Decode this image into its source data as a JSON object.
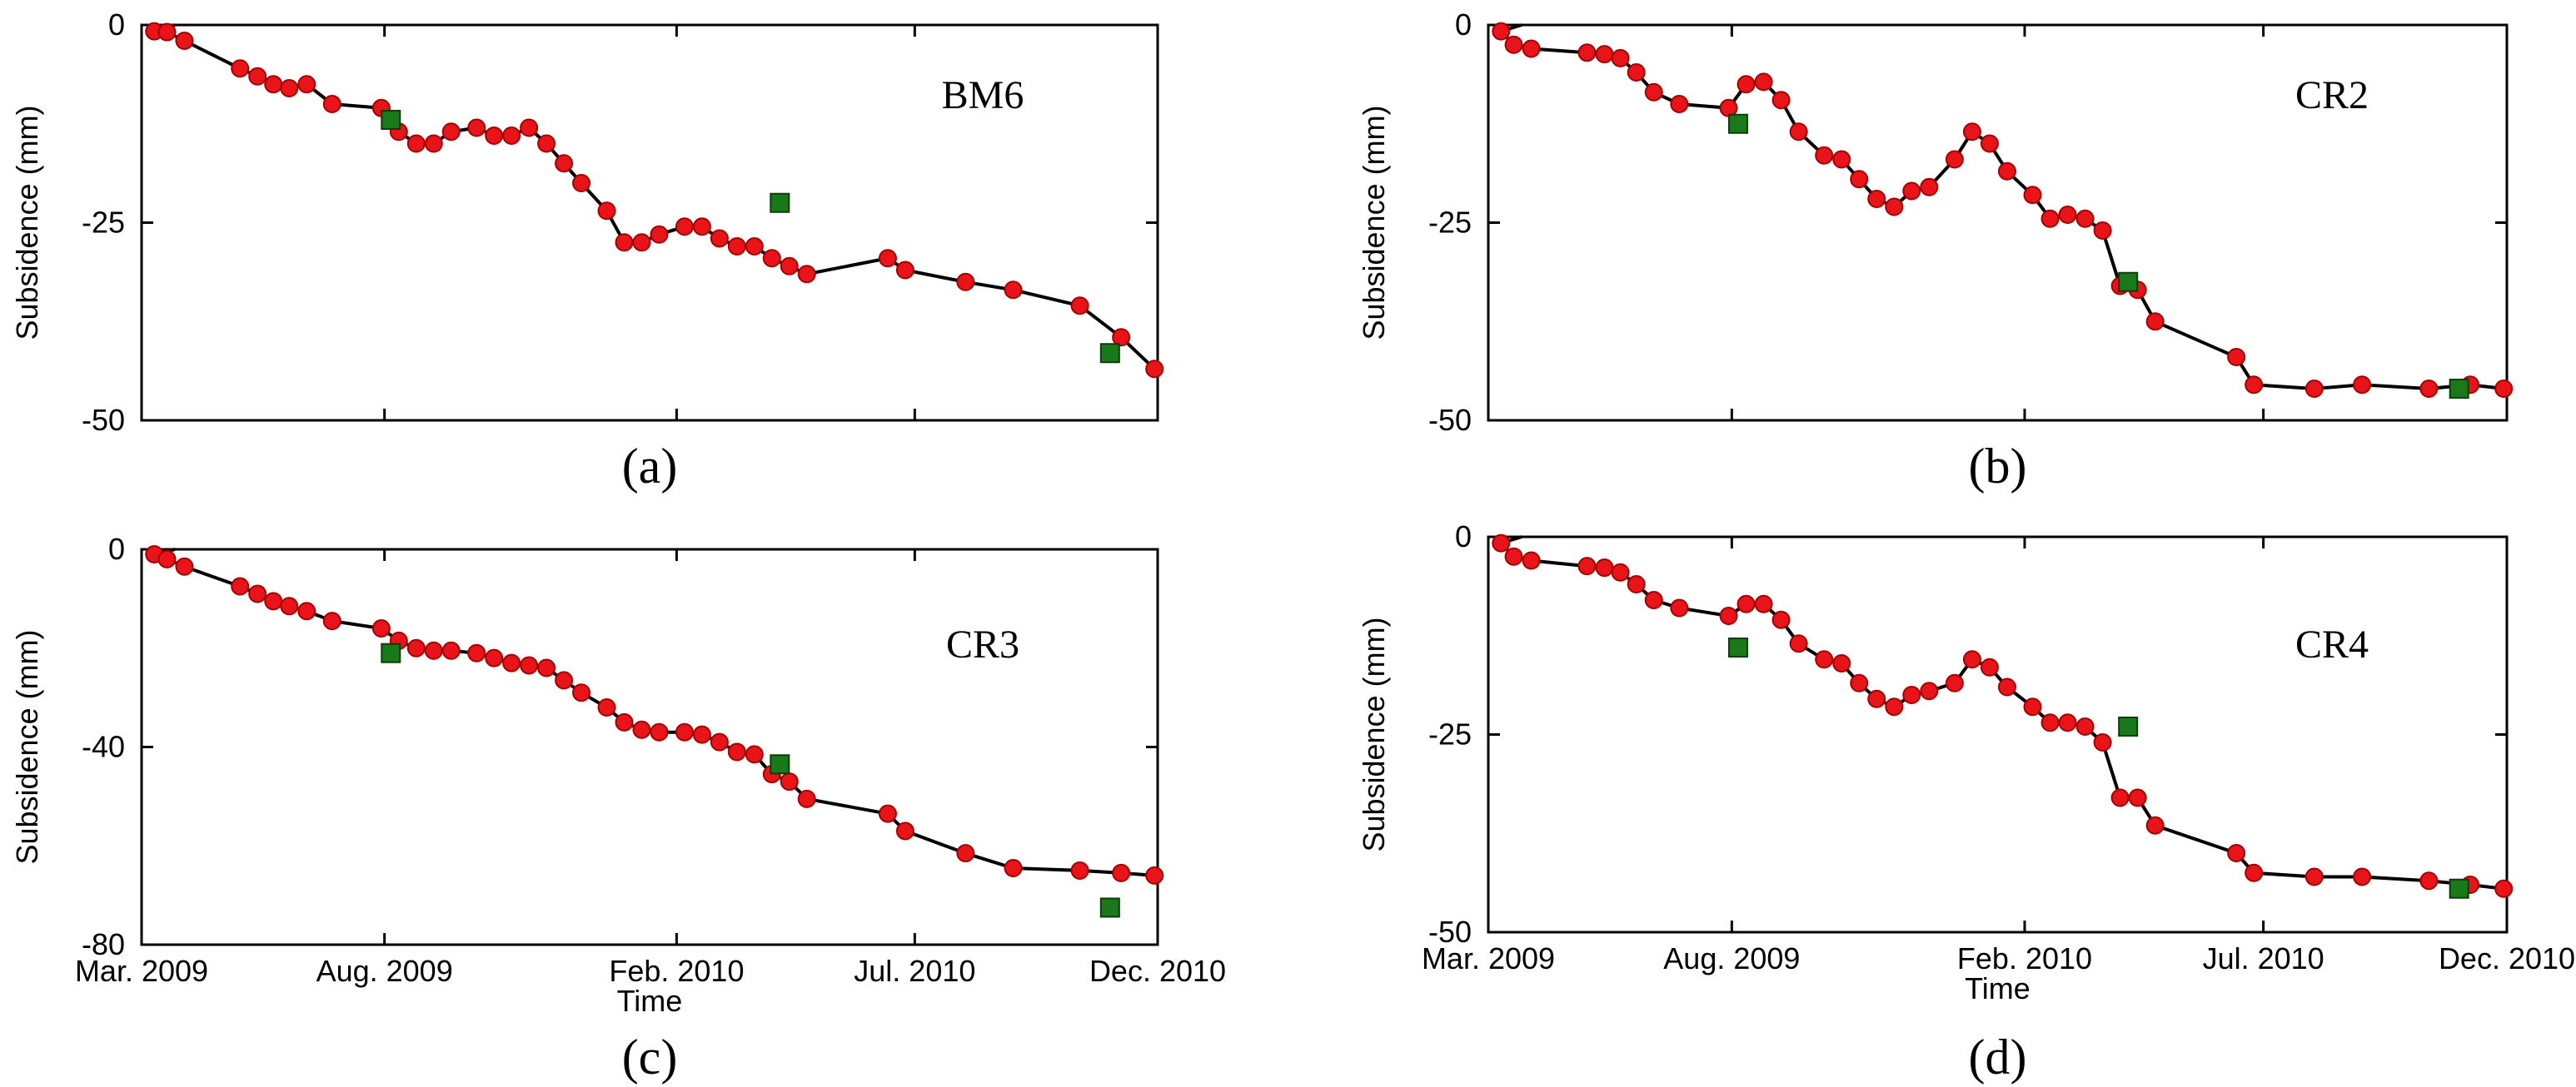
{
  "colors": {
    "insar_points": "#e8141a",
    "leveling_points": "#1a7a1a",
    "line": "#000000",
    "background": "#ffffff"
  },
  "x_tick_labels": [
    "Mar. 2009",
    "Aug. 2009",
    "Feb. 2010",
    "Jul. 2010",
    "Dec. 2010"
  ],
  "x_tick_dates": [
    "2009-03-01",
    "2009-08-01",
    "2010-02-01",
    "2010-07-01",
    "2010-12-01"
  ],
  "chart_data": [
    {
      "type": "line",
      "panel": "(a)",
      "station": "BM6",
      "xlabel": "",
      "ylabel": "Subsidence (mm)",
      "ylim": [
        -50,
        0
      ],
      "yticks": [
        "0",
        "-25",
        "-50"
      ],
      "xlim": [
        "2009-03-01",
        "2010-12-01"
      ],
      "series": [
        {
          "marker": "circle",
          "color": "#e8141a",
          "x": [
            "2009-03-09",
            "2009-03-17",
            "2009-03-28",
            "2009-05-02",
            "2009-05-13",
            "2009-05-23",
            "2009-06-02",
            "2009-06-13",
            "2009-06-29",
            "2009-07-30",
            "2009-08-10",
            "2009-08-21",
            "2009-09-01",
            "2009-09-12",
            "2009-09-28",
            "2009-10-09",
            "2009-10-20",
            "2009-10-31",
            "2009-11-11",
            "2009-11-22",
            "2009-12-03",
            "2009-12-19",
            "2009-12-30",
            "2010-01-10",
            "2010-01-21",
            "2010-02-06",
            "2010-02-17",
            "2010-02-28",
            "2010-03-11",
            "2010-03-22",
            "2010-04-02",
            "2010-04-13",
            "2010-04-24",
            "2010-06-14",
            "2010-06-25",
            "2010-08-02",
            "2010-09-01",
            "2010-10-13",
            "2010-11-08",
            "2010-11-29"
          ],
          "y": [
            -0.8,
            -0.9,
            -2,
            -5.5,
            -6.5,
            -7.5,
            -8,
            -7.5,
            -10,
            -10.5,
            -13.5,
            -15,
            -15,
            -13.5,
            -13,
            -14,
            -14,
            -13,
            -15,
            -17.5,
            -20,
            -23.5,
            -27.5,
            -27.5,
            -26.5,
            -25.5,
            -25.5,
            -27,
            -28,
            -28,
            -29.5,
            -30.5,
            -31.5,
            -29.5,
            -31,
            -32.5,
            -33.5,
            -35.5,
            -39.5,
            -43.5
          ]
        },
        {
          "marker": "square",
          "color": "#1a7a1a",
          "x": [
            "2009-08-05",
            "2010-04-07",
            "2010-11-01"
          ],
          "y": [
            -12,
            -22.5,
            -41.5
          ]
        }
      ]
    },
    {
      "type": "line",
      "panel": "(b)",
      "station": "CR2",
      "xlabel": "",
      "ylabel": "Subsidence (mm)",
      "ylim": [
        -50,
        0
      ],
      "yticks": [
        "0",
        "-25",
        "-50"
      ],
      "xlim": [
        "2009-03-01",
        "2010-12-01"
      ],
      "series": [
        {
          "marker": "circle",
          "color": "#e8141a",
          "x": [
            "2009-03-09",
            "2009-03-17",
            "2009-03-28",
            "2009-05-02",
            "2009-05-13",
            "2009-05-23",
            "2009-06-02",
            "2009-06-13",
            "2009-06-29",
            "2009-07-30",
            "2009-08-10",
            "2009-08-21",
            "2009-09-01",
            "2009-09-12",
            "2009-09-28",
            "2009-10-09",
            "2009-10-20",
            "2009-10-31",
            "2009-11-11",
            "2009-11-22",
            "2009-12-03",
            "2009-12-19",
            "2009-12-30",
            "2010-01-10",
            "2010-01-21",
            "2010-02-06",
            "2010-02-17",
            "2010-02-28",
            "2010-03-11",
            "2010-03-22",
            "2010-04-02",
            "2010-04-13",
            "2010-04-24",
            "2010-06-14",
            "2010-06-25",
            "2010-08-02",
            "2010-09-01",
            "2010-10-13",
            "2010-11-08",
            "2010-11-29"
          ],
          "y": [
            -0.8,
            -2.5,
            -3,
            -3.5,
            -3.7,
            -4.2,
            -6,
            -8.5,
            -10,
            -10.5,
            -7.5,
            -7.2,
            -9.5,
            -13.5,
            -16.5,
            -17,
            -19.5,
            -22,
            -23,
            -21,
            -20.5,
            -17,
            -13.5,
            -15,
            -18.5,
            -21.5,
            -24.5,
            -24,
            -24.5,
            -26,
            -33,
            -33.5,
            -37.5,
            -42,
            -45.5,
            -46,
            -45.5,
            -46,
            -45.5,
            -46
          ]
        },
        {
          "marker": "square",
          "color": "#1a7a1a",
          "x": [
            "2009-08-05",
            "2010-04-07",
            "2010-11-01"
          ],
          "y": [
            -12.5,
            -32.5,
            -46
          ]
        }
      ]
    },
    {
      "type": "line",
      "panel": "(c)",
      "station": "CR3",
      "xlabel": "Time",
      "ylabel": "Subsidence (mm)",
      "ylim": [
        -80,
        0
      ],
      "yticks": [
        "0",
        "-40",
        "-80"
      ],
      "xlim": [
        "2009-03-01",
        "2010-12-01"
      ],
      "series": [
        {
          "marker": "circle",
          "color": "#e8141a",
          "x": [
            "2009-03-09",
            "2009-03-17",
            "2009-03-28",
            "2009-05-02",
            "2009-05-13",
            "2009-05-23",
            "2009-06-02",
            "2009-06-13",
            "2009-06-29",
            "2009-07-30",
            "2009-08-10",
            "2009-08-21",
            "2009-09-01",
            "2009-09-12",
            "2009-09-28",
            "2009-10-09",
            "2009-10-20",
            "2009-10-31",
            "2009-11-11",
            "2009-11-22",
            "2009-12-03",
            "2009-12-19",
            "2009-12-30",
            "2010-01-10",
            "2010-01-21",
            "2010-02-06",
            "2010-02-17",
            "2010-02-28",
            "2010-03-11",
            "2010-03-22",
            "2010-04-02",
            "2010-04-13",
            "2010-04-24",
            "2010-06-14",
            "2010-06-25",
            "2010-08-02",
            "2010-09-01",
            "2010-10-13",
            "2010-11-08",
            "2010-11-29"
          ],
          "y": [
            -1,
            -2,
            -3.5,
            -7.5,
            -9,
            -10.5,
            -11.5,
            -12.5,
            -14.5,
            -16,
            -18.5,
            -20,
            -20.5,
            -20.5,
            -21,
            -22,
            -23,
            -23.5,
            -24,
            -26.5,
            -29,
            -32,
            -35,
            -36.5,
            -37,
            -37,
            -37.5,
            -39,
            -41,
            -41.5,
            -45.5,
            -47,
            -50.5,
            -53.5,
            -57,
            -61.5,
            -64.5,
            -65,
            -65.5,
            -66
          ]
        },
        {
          "marker": "square",
          "color": "#1a7a1a",
          "x": [
            "2009-08-05",
            "2010-04-07",
            "2010-11-01"
          ],
          "y": [
            -21,
            -43.5,
            -72.5
          ]
        }
      ]
    },
    {
      "type": "line",
      "panel": "(d)",
      "station": "CR4",
      "xlabel": "Time",
      "ylabel": "Subsidence (mm)",
      "ylim": [
        -50,
        0
      ],
      "yticks": [
        "0",
        "-25",
        "-50"
      ],
      "xlim": [
        "2009-03-01",
        "2010-12-01"
      ],
      "series": [
        {
          "marker": "circle",
          "color": "#e8141a",
          "x": [
            "2009-03-09",
            "2009-03-17",
            "2009-03-28",
            "2009-05-02",
            "2009-05-13",
            "2009-05-23",
            "2009-06-02",
            "2009-06-13",
            "2009-06-29",
            "2009-07-30",
            "2009-08-10",
            "2009-08-21",
            "2009-09-01",
            "2009-09-12",
            "2009-09-28",
            "2009-10-09",
            "2009-10-20",
            "2009-10-31",
            "2009-11-11",
            "2009-11-22",
            "2009-12-03",
            "2009-12-19",
            "2009-12-30",
            "2010-01-10",
            "2010-01-21",
            "2010-02-06",
            "2010-02-17",
            "2010-02-28",
            "2010-03-11",
            "2010-03-22",
            "2010-04-02",
            "2010-04-13",
            "2010-04-24",
            "2010-06-14",
            "2010-06-25",
            "2010-08-02",
            "2010-09-01",
            "2010-10-13",
            "2010-11-08",
            "2010-11-29"
          ],
          "y": [
            -0.8,
            -2.5,
            -3,
            -3.7,
            -3.9,
            -4.5,
            -6,
            -8,
            -9,
            -10,
            -8.5,
            -8.5,
            -10.5,
            -13.5,
            -15.5,
            -16,
            -18.5,
            -20.5,
            -21.5,
            -20,
            -19.5,
            -18.5,
            -15.5,
            -16.5,
            -19,
            -21.5,
            -23.5,
            -23.5,
            -24,
            -26,
            -33,
            -33,
            -36.5,
            -40,
            -42.5,
            -43,
            -43,
            -43.5,
            -44,
            -44.5
          ]
        },
        {
          "marker": "square",
          "color": "#1a7a1a",
          "x": [
            "2009-08-05",
            "2010-04-07",
            "2010-11-01"
          ],
          "y": [
            -14,
            -24,
            -44.5
          ]
        }
      ]
    }
  ]
}
